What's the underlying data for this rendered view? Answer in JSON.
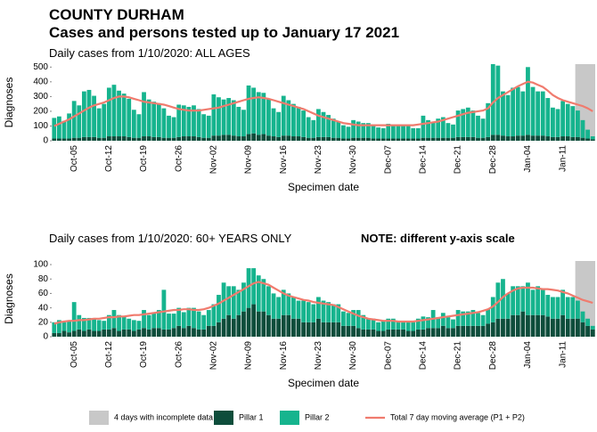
{
  "header": {
    "title": "COUNTY DURHAM",
    "subtitle": "Cases and persons tested up to January 17 2021"
  },
  "legend": {
    "incomplete": "4 days with incomplete data"
  },
  "chart_data": [
    {
      "type": "bar",
      "subtitle": "Daily cases from 1/10/2020: ALL AGES",
      "xlabel": "Specimen date",
      "ylabel": "Diagnoses",
      "stacked": true,
      "incomplete_days": 4,
      "incomplete_color": "#c8c8c8",
      "ylim": [
        0,
        520
      ],
      "yticks": [
        0,
        100,
        200,
        300,
        400,
        500
      ],
      "categories": [
        null,
        null,
        null,
        null,
        "Oct-05",
        null,
        null,
        null,
        null,
        null,
        null,
        "Oct-12",
        null,
        null,
        null,
        null,
        null,
        null,
        "Oct-19",
        null,
        null,
        null,
        null,
        null,
        null,
        "Oct-26",
        null,
        null,
        null,
        null,
        null,
        null,
        "Nov-02",
        null,
        null,
        null,
        null,
        null,
        null,
        "Nov-09",
        null,
        null,
        null,
        null,
        null,
        null,
        "Nov-16",
        null,
        null,
        null,
        null,
        null,
        null,
        "Nov-23",
        null,
        null,
        null,
        null,
        null,
        null,
        "Nov-30",
        null,
        null,
        null,
        null,
        null,
        null,
        "Dec-07",
        null,
        null,
        null,
        null,
        null,
        null,
        "Dec-14",
        null,
        null,
        null,
        null,
        null,
        null,
        "Dec-21",
        null,
        null,
        null,
        null,
        null,
        null,
        "Dec-28",
        null,
        null,
        null,
        null,
        null,
        null,
        "Jan-04",
        null,
        null,
        null,
        null,
        null,
        null,
        "Jan-11",
        null,
        null,
        null,
        null,
        null,
        null
      ],
      "series": [
        {
          "name": "Pillar 1",
          "color": "#0e4d3b",
          "values": [
            15,
            15,
            15,
            15,
            20,
            20,
            25,
            25,
            25,
            20,
            20,
            30,
            30,
            30,
            30,
            25,
            20,
            20,
            30,
            30,
            25,
            25,
            20,
            20,
            20,
            25,
            30,
            30,
            30,
            25,
            20,
            20,
            35,
            35,
            40,
            40,
            35,
            30,
            30,
            45,
            50,
            40,
            45,
            35,
            30,
            25,
            35,
            35,
            30,
            30,
            25,
            20,
            20,
            25,
            25,
            25,
            20,
            20,
            15,
            15,
            20,
            20,
            20,
            20,
            15,
            15,
            15,
            15,
            15,
            15,
            15,
            15,
            15,
            15,
            20,
            20,
            20,
            20,
            20,
            20,
            20,
            25,
            25,
            25,
            25,
            20,
            20,
            25,
            40,
            40,
            35,
            30,
            30,
            35,
            35,
            40,
            35,
            35,
            35,
            30,
            25,
            25,
            30,
            30,
            25,
            25,
            20,
            15,
            10
          ]
        },
        {
          "name": "Pillar 2",
          "color": "#16b48e",
          "values": [
            140,
            150,
            120,
            170,
            250,
            220,
            310,
            320,
            280,
            200,
            230,
            330,
            350,
            310,
            290,
            260,
            190,
            160,
            300,
            250,
            240,
            230,
            200,
            150,
            140,
            220,
            210,
            200,
            210,
            190,
            160,
            150,
            280,
            260,
            240,
            250,
            240,
            200,
            180,
            330,
            310,
            290,
            280,
            250,
            190,
            170,
            270,
            240,
            220,
            200,
            180,
            140,
            120,
            190,
            170,
            150,
            130,
            110,
            90,
            80,
            120,
            110,
            100,
            100,
            90,
            75,
            70,
            100,
            95,
            90,
            90,
            85,
            70,
            70,
            150,
            120,
            110,
            130,
            140,
            100,
            90,
            180,
            190,
            200,
            180,
            150,
            130,
            230,
            480,
            470,
            300,
            280,
            330,
            330,
            300,
            460,
            330,
            300,
            300,
            260,
            200,
            190,
            240,
            220,
            210,
            180,
            120,
            60,
            20
          ]
        },
        {
          "name": "Total 7 day moving average (P1 + P2)",
          "color": "#f07b6e",
          "type": "line",
          "values": [
            100,
            115,
            130,
            145,
            165,
            185,
            205,
            225,
            240,
            250,
            260,
            275,
            290,
            300,
            300,
            295,
            285,
            275,
            265,
            260,
            255,
            250,
            245,
            235,
            225,
            215,
            210,
            205,
            205,
            205,
            210,
            215,
            220,
            225,
            235,
            245,
            255,
            265,
            275,
            285,
            290,
            295,
            290,
            285,
            275,
            265,
            255,
            245,
            235,
            225,
            215,
            200,
            185,
            170,
            160,
            150,
            140,
            130,
            120,
            115,
            110,
            105,
            105,
            105,
            105,
            105,
            105,
            105,
            105,
            105,
            105,
            105,
            105,
            110,
            115,
            120,
            125,
            130,
            140,
            150,
            160,
            170,
            180,
            190,
            195,
            200,
            205,
            220,
            260,
            290,
            310,
            330,
            350,
            370,
            385,
            400,
            395,
            380,
            365,
            340,
            310,
            290,
            275,
            265,
            255,
            245,
            235,
            220,
            200
          ]
        }
      ]
    },
    {
      "type": "bar",
      "subtitle": "Daily cases from 1/10/2020: 60+ YEARS ONLY",
      "note": "NOTE: different y-axis scale",
      "xlabel": "Specimen date",
      "ylabel": "Diagnoses",
      "stacked": true,
      "incomplete_days": 4,
      "incomplete_color": "#c8c8c8",
      "ylim": [
        0,
        105
      ],
      "yticks": [
        0,
        20,
        40,
        60,
        80,
        100
      ],
      "categories": [
        null,
        null,
        null,
        null,
        "Oct-05",
        null,
        null,
        null,
        null,
        null,
        null,
        "Oct-12",
        null,
        null,
        null,
        null,
        null,
        null,
        "Oct-19",
        null,
        null,
        null,
        null,
        null,
        null,
        "Oct-26",
        null,
        null,
        null,
        null,
        null,
        null,
        "Nov-02",
        null,
        null,
        null,
        null,
        null,
        null,
        "Nov-09",
        null,
        null,
        null,
        null,
        null,
        null,
        "Nov-16",
        null,
        null,
        null,
        null,
        null,
        null,
        "Nov-23",
        null,
        null,
        null,
        null,
        null,
        null,
        "Nov-30",
        null,
        null,
        null,
        null,
        null,
        null,
        "Dec-07",
        null,
        null,
        null,
        null,
        null,
        null,
        "Dec-14",
        null,
        null,
        null,
        null,
        null,
        null,
        "Dec-21",
        null,
        null,
        null,
        null,
        null,
        null,
        "Dec-28",
        null,
        null,
        null,
        null,
        null,
        null,
        "Jan-04",
        null,
        null,
        null,
        null,
        null,
        null,
        "Jan-11",
        null,
        null,
        null,
        null,
        null,
        null
      ],
      "series": [
        {
          "name": "Pillar 1",
          "color": "#0e4d3b",
          "values": [
            5,
            5,
            8,
            6,
            8,
            10,
            8,
            10,
            8,
            8,
            10,
            10,
            12,
            8,
            10,
            10,
            8,
            10,
            12,
            10,
            12,
            12,
            10,
            10,
            12,
            15,
            12,
            15,
            12,
            10,
            10,
            15,
            15,
            20,
            25,
            30,
            25,
            30,
            35,
            40,
            45,
            35,
            35,
            30,
            25,
            25,
            30,
            30,
            25,
            25,
            20,
            20,
            20,
            25,
            20,
            20,
            20,
            20,
            15,
            15,
            15,
            12,
            10,
            10,
            10,
            8,
            8,
            10,
            10,
            10,
            10,
            8,
            8,
            10,
            10,
            12,
            12,
            12,
            15,
            12,
            12,
            15,
            15,
            15,
            15,
            15,
            15,
            18,
            20,
            25,
            25,
            25,
            30,
            30,
            35,
            30,
            30,
            30,
            30,
            28,
            25,
            25,
            30,
            25,
            25,
            25,
            20,
            15,
            10
          ]
        },
        {
          "name": "Pillar 2",
          "color": "#16b48e",
          "values": [
            15,
            18,
            12,
            15,
            40,
            20,
            18,
            16,
            18,
            15,
            12,
            20,
            25,
            22,
            18,
            15,
            15,
            12,
            25,
            20,
            22,
            25,
            55,
            22,
            20,
            25,
            22,
            25,
            28,
            25,
            20,
            22,
            30,
            38,
            50,
            40,
            45,
            35,
            40,
            55,
            50,
            50,
            45,
            40,
            35,
            30,
            35,
            30,
            30,
            25,
            30,
            28,
            25,
            30,
            30,
            28,
            25,
            25,
            20,
            18,
            22,
            25,
            20,
            15,
            15,
            12,
            14,
            15,
            15,
            12,
            12,
            14,
            12,
            15,
            18,
            15,
            25,
            15,
            18,
            15,
            12,
            22,
            20,
            20,
            22,
            18,
            15,
            20,
            35,
            50,
            55,
            35,
            40,
            40,
            35,
            45,
            35,
            40,
            35,
            30,
            30,
            30,
            35,
            30,
            30,
            25,
            15,
            10,
            5
          ]
        },
        {
          "name": "Total 7 day moving average (P1 + P2)",
          "color": "#f07b6e",
          "type": "line",
          "values": [
            18,
            20,
            21,
            22,
            22,
            23,
            23,
            24,
            25,
            25,
            26,
            27,
            27,
            28,
            28,
            29,
            30,
            30,
            31,
            32,
            33,
            34,
            35,
            36,
            37,
            37,
            38,
            38,
            37,
            37,
            38,
            40,
            43,
            46,
            50,
            54,
            58,
            62,
            66,
            70,
            74,
            76,
            74,
            72,
            68,
            64,
            60,
            57,
            55,
            53,
            51,
            50,
            48,
            47,
            46,
            45,
            44,
            41,
            38,
            35,
            32,
            29,
            27,
            25,
            24,
            23,
            22,
            22,
            22,
            21,
            21,
            21,
            21,
            22,
            23,
            24,
            25,
            26,
            27,
            28,
            29,
            30,
            31,
            32,
            33,
            34,
            36,
            38,
            42,
            48,
            55,
            60,
            64,
            67,
            68,
            68,
            68,
            67,
            66,
            66,
            65,
            64,
            62,
            60,
            57,
            54,
            51,
            49,
            47
          ]
        }
      ]
    }
  ]
}
